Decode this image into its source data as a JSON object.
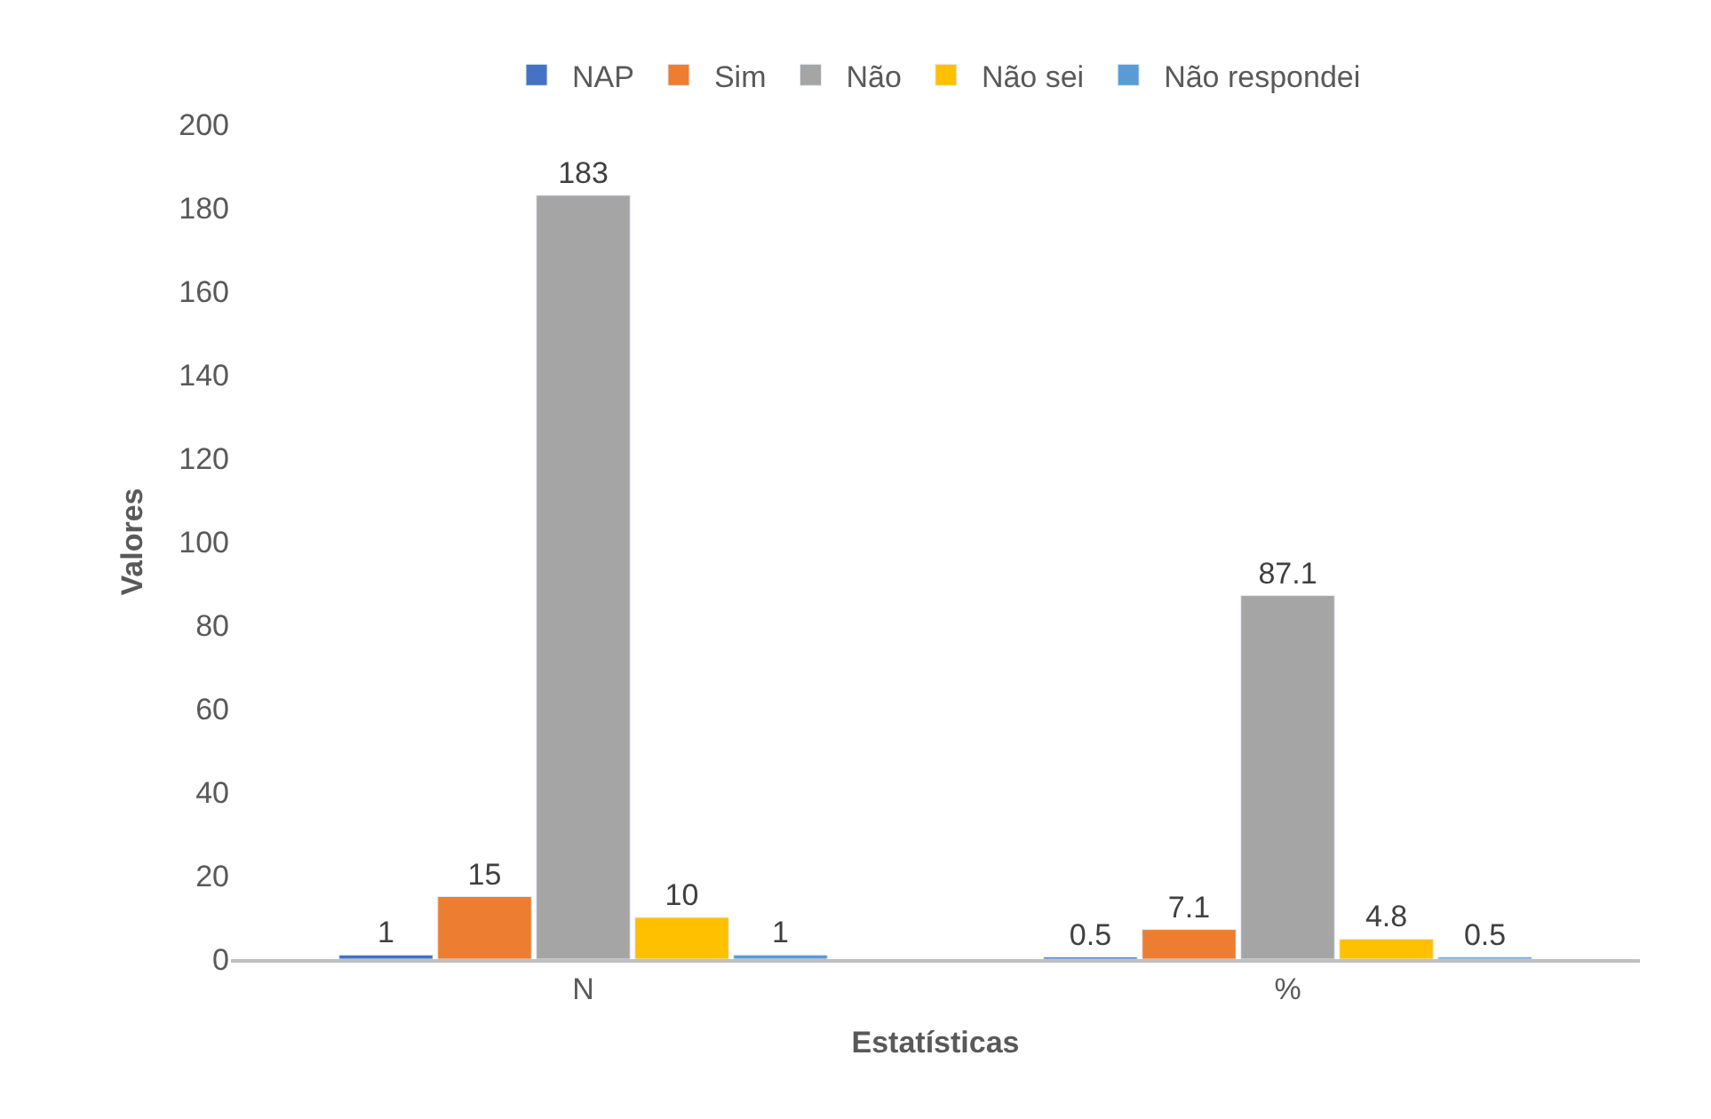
{
  "chart_data": {
    "type": "bar",
    "xlabel": "Estatísticas",
    "ylabel": "Valores",
    "categories": [
      "N",
      "%"
    ],
    "series": [
      {
        "name": "NAP",
        "color": "#4472c4",
        "values": [
          1,
          0.5
        ]
      },
      {
        "name": "Sim",
        "color": "#ed7d31",
        "values": [
          15,
          7.1
        ]
      },
      {
        "name": "Não",
        "color": "#a5a5a5",
        "values": [
          183,
          87.1
        ]
      },
      {
        "name": "Não sei",
        "color": "#ffc000",
        "values": [
          10,
          4.8
        ]
      },
      {
        "name": "Não respondei",
        "color": "#5b9bd5",
        "values": [
          1,
          0.5
        ]
      }
    ],
    "ylim": [
      0,
      200
    ],
    "yticks": [
      0,
      20,
      40,
      60,
      80,
      100,
      120,
      140,
      160,
      180,
      200
    ],
    "data_labels": true,
    "legend": "top"
  }
}
